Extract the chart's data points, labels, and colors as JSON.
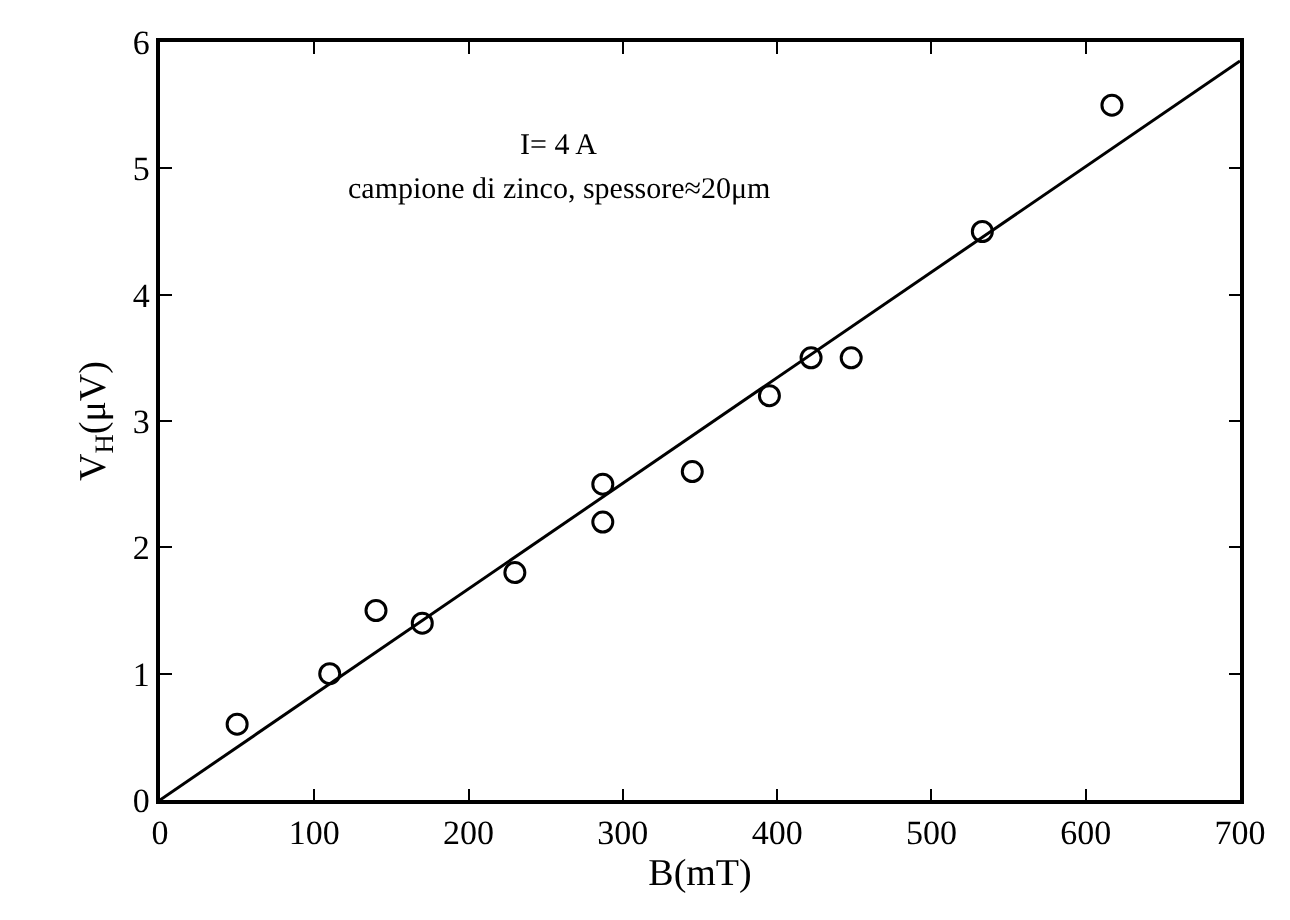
{
  "chart_data": {
    "type": "scatter",
    "xlabel": "B(mT)",
    "ylabel": "V$_{H}$(μV)",
    "xlim": [
      0,
      700
    ],
    "xticks": [
      0,
      100,
      200,
      300,
      400,
      500,
      600,
      700
    ],
    "ylim": [
      0,
      6
    ],
    "yticks": [
      0,
      1,
      2,
      3,
      4,
      5,
      6
    ],
    "annotations": [
      "I= 4 A",
      "campione di zinco, spessore≈20μm"
    ],
    "series": [
      {
        "marker": "circle",
        "color": "#000000",
        "x": [
          50,
          110,
          140,
          170,
          230,
          287,
          287,
          345,
          395,
          422,
          448,
          533,
          617
        ],
        "values": [
          0.6,
          1.0,
          1.5,
          1.4,
          1.8,
          2.5,
          2.2,
          2.6,
          3.2,
          3.5,
          3.5,
          4.5,
          5.5
        ]
      },
      {
        "type": "line",
        "marker": "none",
        "color": "#000000",
        "line_style": "solid",
        "x": [
          0,
          700
        ],
        "values": [
          0,
          5.85
        ]
      }
    ]
  }
}
